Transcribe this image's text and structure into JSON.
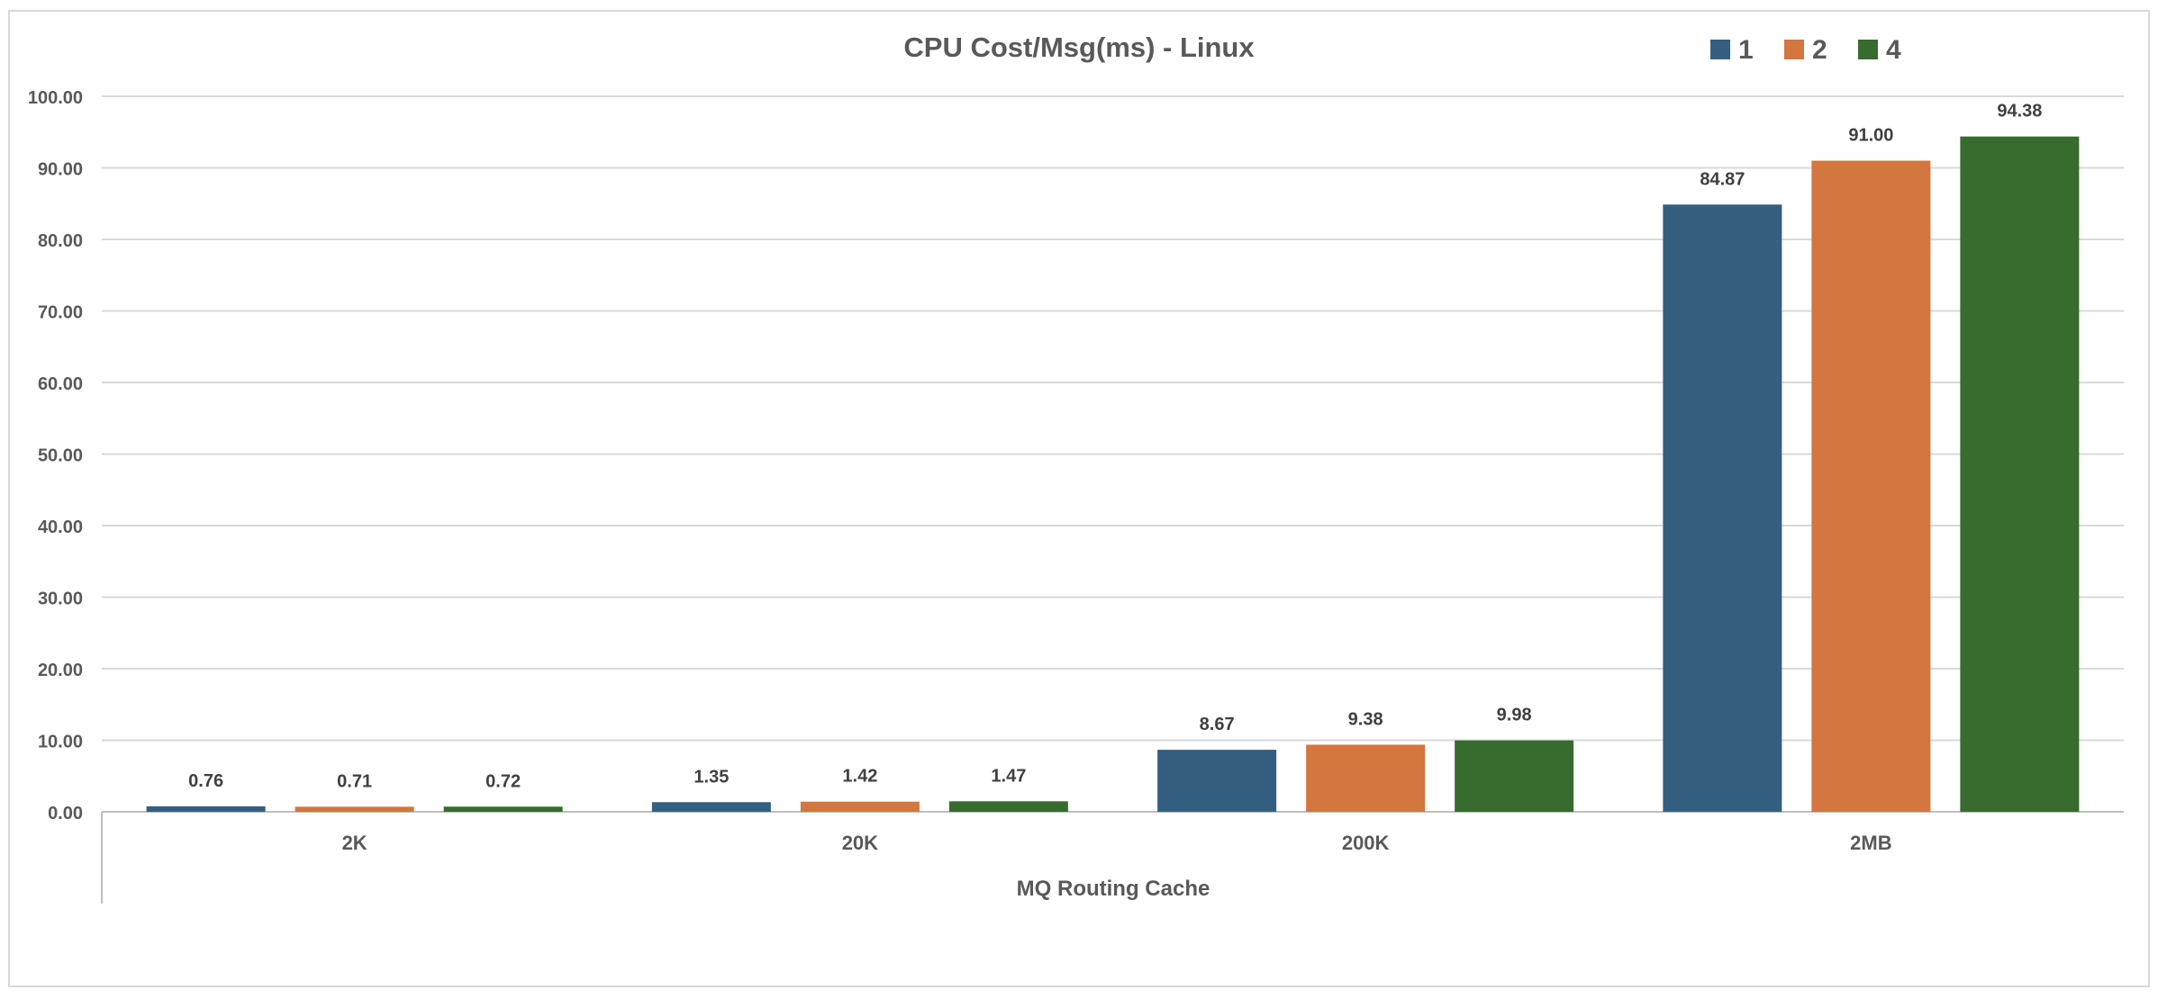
{
  "chart_data": {
    "type": "bar",
    "title": "CPU Cost/Msg(ms) - Linux",
    "xlabel": "MQ Routing Cache",
    "ylabel": "",
    "categories": [
      "2K",
      "20K",
      "200K",
      "2MB"
    ],
    "series": [
      {
        "name": "1",
        "color": "#345F80",
        "values": [
          0.76,
          1.35,
          8.67,
          84.87
        ]
      },
      {
        "name": "2",
        "color": "#D4763F",
        "values": [
          0.71,
          1.42,
          9.38,
          91.0
        ]
      },
      {
        "name": "4",
        "color": "#386B2E",
        "values": [
          0.72,
          1.47,
          9.98,
          94.38
        ]
      }
    ],
    "ylim": [
      0,
      100
    ],
    "yticks": [
      "0.00",
      "10.00",
      "20.00",
      "30.00",
      "40.00",
      "50.00",
      "60.00",
      "70.00",
      "80.00",
      "90.00",
      "100.00"
    ],
    "value_labels": [
      [
        "0.76",
        "1.35",
        "8.67",
        "84.87"
      ],
      [
        "0.71",
        "1.42",
        "9.38",
        "91.00"
      ],
      [
        "0.72",
        "1.47",
        "9.98",
        "94.38"
      ]
    ],
    "grid": true,
    "legend_position": "top-right"
  }
}
